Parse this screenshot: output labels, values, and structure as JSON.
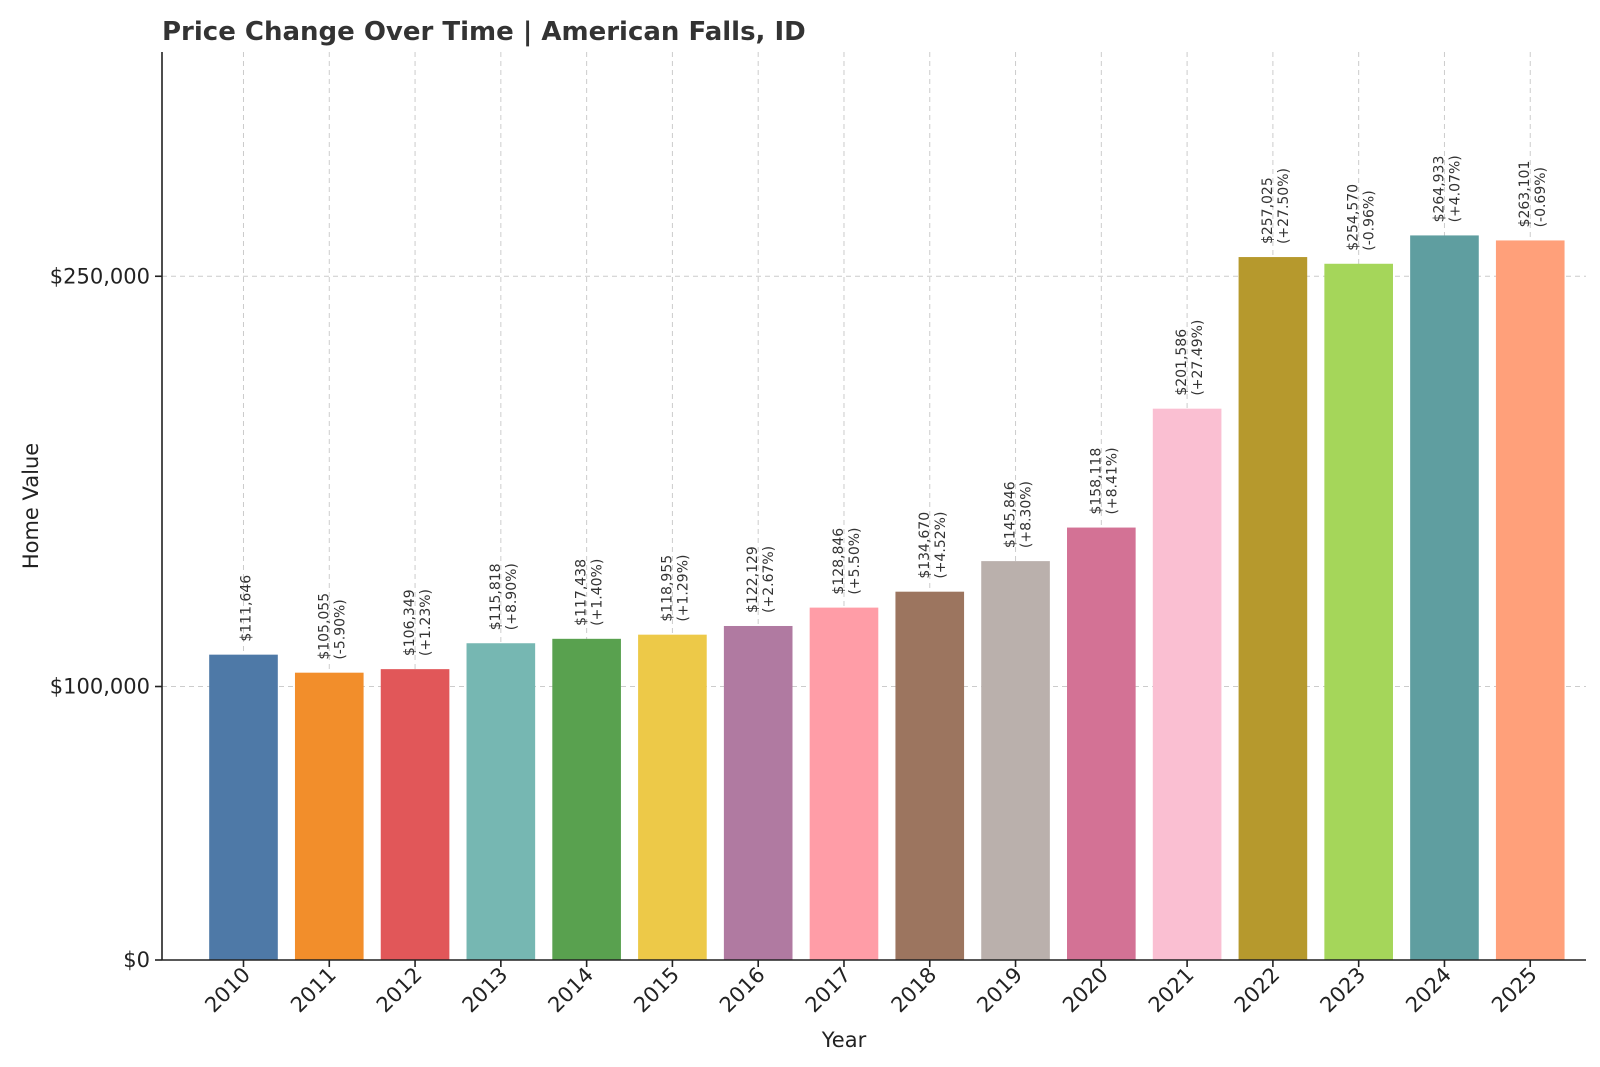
{
  "chart_data": {
    "type": "bar",
    "title": "Price Change Over Time | American Falls, ID",
    "xlabel": "Year",
    "ylabel": "Home Value",
    "ylim": [
      0,
      332000
    ],
    "yticks": [
      0,
      100000,
      250000
    ],
    "ytick_labels": [
      "$0",
      "$100,000",
      "$250,000"
    ],
    "grid": true,
    "categories": [
      "2010",
      "2011",
      "2012",
      "2013",
      "2014",
      "2015",
      "2016",
      "2017",
      "2018",
      "2019",
      "2020",
      "2021",
      "2022",
      "2023",
      "2024",
      "2025"
    ],
    "values": [
      111646,
      105055,
      106349,
      115818,
      117438,
      118955,
      122129,
      128846,
      134670,
      145846,
      158118,
      201586,
      257025,
      254570,
      264933,
      263101
    ],
    "value_labels": [
      "$111,646",
      "$105,055",
      "$106,349",
      "$115,818",
      "$117,438",
      "$118,955",
      "$122,129",
      "$128,846",
      "$134,670",
      "$145,846",
      "$158,118",
      "$201,586",
      "$257,025",
      "$254,570",
      "$264,933",
      "$263,101"
    ],
    "change_labels": [
      "",
      "(-5.90%)",
      "(+1.23%)",
      "(+8.90%)",
      "(+1.40%)",
      "(+1.29%)",
      "(+2.67%)",
      "(+5.50%)",
      "(+4.52%)",
      "(+8.30%)",
      "(+8.41%)",
      "(+27.49%)",
      "(+27.50%)",
      "(-0.96%)",
      "(+4.07%)",
      "(-0.69%)"
    ],
    "colors": [
      "#4e79a7",
      "#f28e2b",
      "#e15759",
      "#76b7b2",
      "#59a14f",
      "#edc948",
      "#b07aa1",
      "#ff9da7",
      "#9c755f",
      "#bab0ac",
      "#d37295",
      "#fabfd2",
      "#b6992d",
      "#a5d65a",
      "#5f9ea0",
      "#ffa07a"
    ]
  }
}
